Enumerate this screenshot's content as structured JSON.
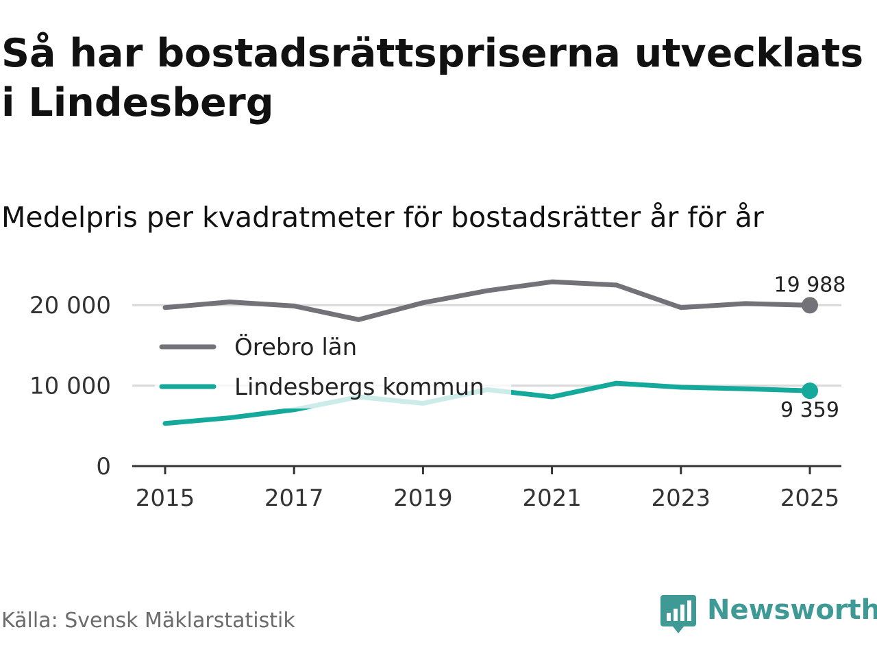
{
  "title": "Så har bostadsrättspriserna utvecklats i Lindesberg",
  "subtitle": "Medelpris per kvadratmeter för bostadsrätter år för år",
  "source": "Källa: Svensk Mäklarstatistik",
  "brand": "Newsworthy",
  "icons": {
    "brand": "newsworthy-logo-icon"
  },
  "colors": {
    "orebro": "#737278",
    "lindesberg": "#14a99b",
    "grid": "#d9d9d9",
    "brand": "#3f9a95"
  },
  "chart_data": {
    "type": "line",
    "title": "Så har bostadsrättspriserna utvecklats i Lindesberg",
    "subtitle": "Medelpris per kvadratmeter för bostadsrätter år för år",
    "x": [
      2015,
      2016,
      2017,
      2018,
      2019,
      2020,
      2021,
      2022,
      2023,
      2024,
      2025
    ],
    "x_ticks": [
      2015,
      2017,
      2019,
      2021,
      2023,
      2025
    ],
    "x_tick_labels": [
      "2015",
      "2017",
      "2019",
      "2021",
      "2023",
      "2025"
    ],
    "y_ticks": [
      0,
      10000,
      20000
    ],
    "y_tick_labels": [
      "0",
      "10 000",
      "20 000"
    ],
    "ylim": [
      0,
      23000
    ],
    "grid": true,
    "legend_position": "top-left",
    "series": [
      {
        "name": "Örebro län",
        "color": "#737278",
        "values": [
          19700,
          20400,
          19900,
          18200,
          20300,
          21800,
          22900,
          22500,
          19700,
          20200,
          19988
        ],
        "end_label": "19 988"
      },
      {
        "name": "Lindesbergs kommun",
        "color": "#14a99b",
        "values": [
          5300,
          6000,
          7000,
          8600,
          7800,
          9500,
          8600,
          10300,
          9800,
          9600,
          9359
        ],
        "end_label": "9 359"
      }
    ]
  }
}
